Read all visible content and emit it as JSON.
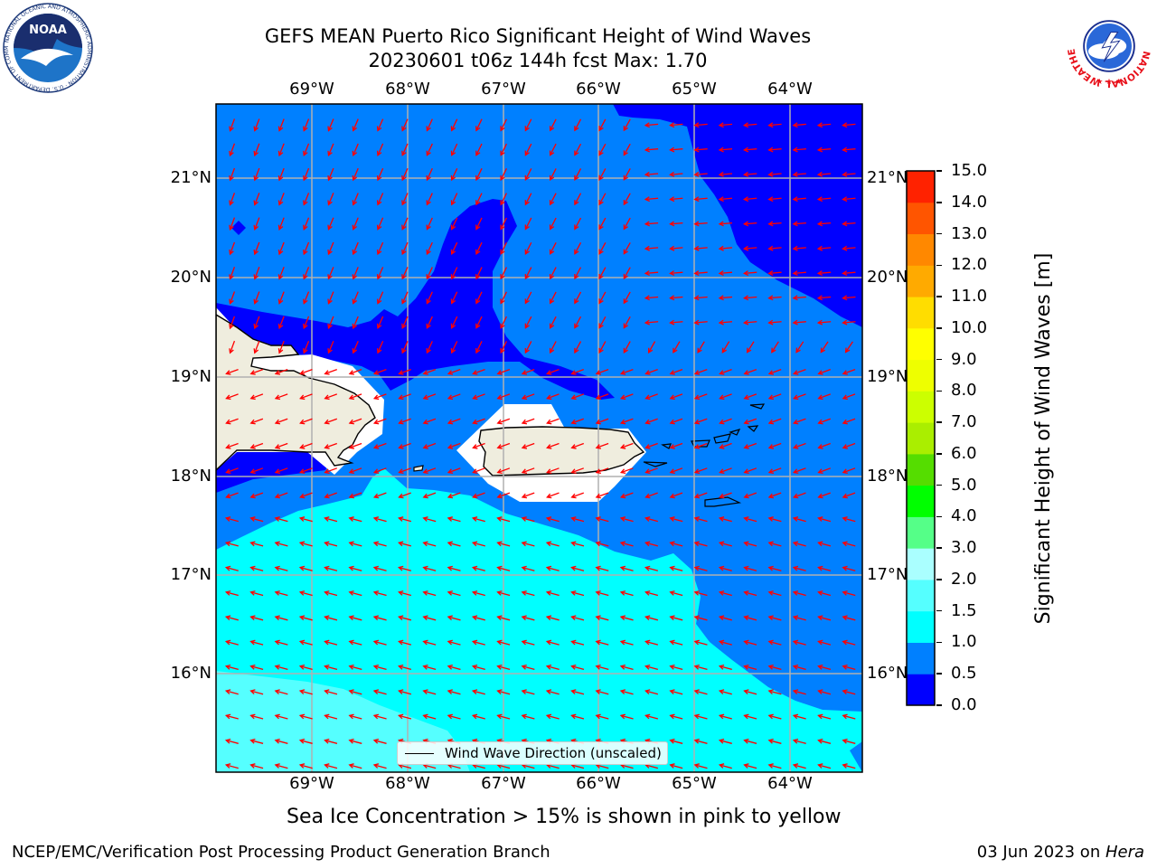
{
  "header": {
    "title_line1": "GEFS MEAN Puerto Rico Significant Height of Wind Waves",
    "title_line2": "20230601 t06z 144h fcst   Max: 1.70"
  },
  "logos": {
    "noaa_text": "NOAA",
    "noaa_ring": "NATIONAL OCEANIC AND ATMOSPHERIC ADMINISTRATION · U.S. DEPARTMENT OF COMMERCE",
    "nws_ring": "NATIONAL WEATHER SERVICE"
  },
  "map": {
    "lon_labels": [
      "69°W",
      "68°W",
      "67°W",
      "66°W",
      "65°W",
      "64°W"
    ],
    "lat_labels": [
      "21°N",
      "20°N",
      "19°N",
      "18°N",
      "17°N",
      "16°N"
    ],
    "lon_range": [
      -70.0,
      -63.3
    ],
    "lat_range": [
      15.0,
      21.75
    ],
    "grid": true,
    "arrow_color": "#ff0000",
    "land_color": "#efedde",
    "legend_label": "Wind Wave Direction (unscaled)"
  },
  "colorbar": {
    "title": "Significant Height of Wind Waves [m]",
    "tick_labels": [
      "0.0",
      "0.5",
      "1.0",
      "1.5",
      "2.0",
      "3.0",
      "4.0",
      "5.0",
      "6.0",
      "7.0",
      "8.0",
      "9.0",
      "10.0",
      "11.0",
      "12.0",
      "13.0",
      "14.0",
      "15.0"
    ],
    "colors": [
      "#0000ff",
      "#0080ff",
      "#00ffff",
      "#55ffff",
      "#aaffff",
      "#55ff88",
      "#00ff00",
      "#55dd00",
      "#aaee00",
      "#ccff00",
      "#eeff00",
      "#ffff00",
      "#ffdd00",
      "#ffaa00",
      "#ff8800",
      "#ff5500",
      "#ff2200",
      "#ff0000"
    ]
  },
  "subtitle": "Sea Ice Concentration > 15% is shown in pink to yellow",
  "footer": {
    "left": "NCEP/EMC/Verification Post Processing Product Generation Branch",
    "right_prefix": "03 Jun 2023 on ",
    "right_machine": "Hera"
  }
}
